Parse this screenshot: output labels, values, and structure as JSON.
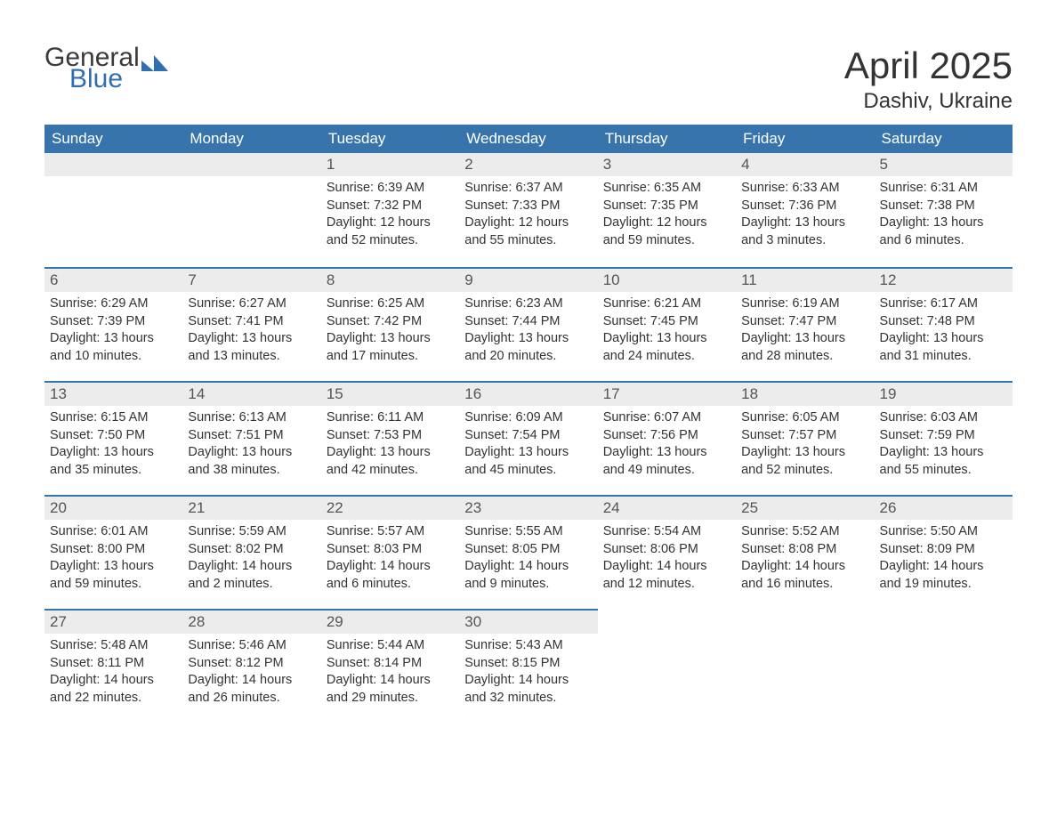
{
  "logo": {
    "word1": "General",
    "word2": "Blue",
    "word1_color": "#3a3a3a",
    "word2_color": "#2f6fb0",
    "shape_color": "#2f6fb0"
  },
  "title": "April 2025",
  "location": "Dashiv, Ukraine",
  "colors": {
    "header_bg": "#3874ac",
    "header_text": "#ffffff",
    "daynum_bg": "#ececec",
    "daynum_text": "#555555",
    "body_text": "#333333",
    "row_divider": "#3874ac",
    "page_bg": "#ffffff"
  },
  "fonts": {
    "title_size_pt": 32,
    "location_size_pt": 18,
    "header_size_pt": 13,
    "daynum_size_pt": 13,
    "body_size_pt": 11
  },
  "weekdays": [
    "Sunday",
    "Monday",
    "Tuesday",
    "Wednesday",
    "Thursday",
    "Friday",
    "Saturday"
  ],
  "calendar": {
    "leading_blanks": 2,
    "trailing_blanks": 3,
    "days": [
      {
        "n": "1",
        "sunrise": "Sunrise: 6:39 AM",
        "sunset": "Sunset: 7:32 PM",
        "daylight": "Daylight: 12 hours and 52 minutes."
      },
      {
        "n": "2",
        "sunrise": "Sunrise: 6:37 AM",
        "sunset": "Sunset: 7:33 PM",
        "daylight": "Daylight: 12 hours and 55 minutes."
      },
      {
        "n": "3",
        "sunrise": "Sunrise: 6:35 AM",
        "sunset": "Sunset: 7:35 PM",
        "daylight": "Daylight: 12 hours and 59 minutes."
      },
      {
        "n": "4",
        "sunrise": "Sunrise: 6:33 AM",
        "sunset": "Sunset: 7:36 PM",
        "daylight": "Daylight: 13 hours and 3 minutes."
      },
      {
        "n": "5",
        "sunrise": "Sunrise: 6:31 AM",
        "sunset": "Sunset: 7:38 PM",
        "daylight": "Daylight: 13 hours and 6 minutes."
      },
      {
        "n": "6",
        "sunrise": "Sunrise: 6:29 AM",
        "sunset": "Sunset: 7:39 PM",
        "daylight": "Daylight: 13 hours and 10 minutes."
      },
      {
        "n": "7",
        "sunrise": "Sunrise: 6:27 AM",
        "sunset": "Sunset: 7:41 PM",
        "daylight": "Daylight: 13 hours and 13 minutes."
      },
      {
        "n": "8",
        "sunrise": "Sunrise: 6:25 AM",
        "sunset": "Sunset: 7:42 PM",
        "daylight": "Daylight: 13 hours and 17 minutes."
      },
      {
        "n": "9",
        "sunrise": "Sunrise: 6:23 AM",
        "sunset": "Sunset: 7:44 PM",
        "daylight": "Daylight: 13 hours and 20 minutes."
      },
      {
        "n": "10",
        "sunrise": "Sunrise: 6:21 AM",
        "sunset": "Sunset: 7:45 PM",
        "daylight": "Daylight: 13 hours and 24 minutes."
      },
      {
        "n": "11",
        "sunrise": "Sunrise: 6:19 AM",
        "sunset": "Sunset: 7:47 PM",
        "daylight": "Daylight: 13 hours and 28 minutes."
      },
      {
        "n": "12",
        "sunrise": "Sunrise: 6:17 AM",
        "sunset": "Sunset: 7:48 PM",
        "daylight": "Daylight: 13 hours and 31 minutes."
      },
      {
        "n": "13",
        "sunrise": "Sunrise: 6:15 AM",
        "sunset": "Sunset: 7:50 PM",
        "daylight": "Daylight: 13 hours and 35 minutes."
      },
      {
        "n": "14",
        "sunrise": "Sunrise: 6:13 AM",
        "sunset": "Sunset: 7:51 PM",
        "daylight": "Daylight: 13 hours and 38 minutes."
      },
      {
        "n": "15",
        "sunrise": "Sunrise: 6:11 AM",
        "sunset": "Sunset: 7:53 PM",
        "daylight": "Daylight: 13 hours and 42 minutes."
      },
      {
        "n": "16",
        "sunrise": "Sunrise: 6:09 AM",
        "sunset": "Sunset: 7:54 PM",
        "daylight": "Daylight: 13 hours and 45 minutes."
      },
      {
        "n": "17",
        "sunrise": "Sunrise: 6:07 AM",
        "sunset": "Sunset: 7:56 PM",
        "daylight": "Daylight: 13 hours and 49 minutes."
      },
      {
        "n": "18",
        "sunrise": "Sunrise: 6:05 AM",
        "sunset": "Sunset: 7:57 PM",
        "daylight": "Daylight: 13 hours and 52 minutes."
      },
      {
        "n": "19",
        "sunrise": "Sunrise: 6:03 AM",
        "sunset": "Sunset: 7:59 PM",
        "daylight": "Daylight: 13 hours and 55 minutes."
      },
      {
        "n": "20",
        "sunrise": "Sunrise: 6:01 AM",
        "sunset": "Sunset: 8:00 PM",
        "daylight": "Daylight: 13 hours and 59 minutes."
      },
      {
        "n": "21",
        "sunrise": "Sunrise: 5:59 AM",
        "sunset": "Sunset: 8:02 PM",
        "daylight": "Daylight: 14 hours and 2 minutes."
      },
      {
        "n": "22",
        "sunrise": "Sunrise: 5:57 AM",
        "sunset": "Sunset: 8:03 PM",
        "daylight": "Daylight: 14 hours and 6 minutes."
      },
      {
        "n": "23",
        "sunrise": "Sunrise: 5:55 AM",
        "sunset": "Sunset: 8:05 PM",
        "daylight": "Daylight: 14 hours and 9 minutes."
      },
      {
        "n": "24",
        "sunrise": "Sunrise: 5:54 AM",
        "sunset": "Sunset: 8:06 PM",
        "daylight": "Daylight: 14 hours and 12 minutes."
      },
      {
        "n": "25",
        "sunrise": "Sunrise: 5:52 AM",
        "sunset": "Sunset: 8:08 PM",
        "daylight": "Daylight: 14 hours and 16 minutes."
      },
      {
        "n": "26",
        "sunrise": "Sunrise: 5:50 AM",
        "sunset": "Sunset: 8:09 PM",
        "daylight": "Daylight: 14 hours and 19 minutes."
      },
      {
        "n": "27",
        "sunrise": "Sunrise: 5:48 AM",
        "sunset": "Sunset: 8:11 PM",
        "daylight": "Daylight: 14 hours and 22 minutes."
      },
      {
        "n": "28",
        "sunrise": "Sunrise: 5:46 AM",
        "sunset": "Sunset: 8:12 PM",
        "daylight": "Daylight: 14 hours and 26 minutes."
      },
      {
        "n": "29",
        "sunrise": "Sunrise: 5:44 AM",
        "sunset": "Sunset: 8:14 PM",
        "daylight": "Daylight: 14 hours and 29 minutes."
      },
      {
        "n": "30",
        "sunrise": "Sunrise: 5:43 AM",
        "sunset": "Sunset: 8:15 PM",
        "daylight": "Daylight: 14 hours and 32 minutes."
      }
    ]
  }
}
